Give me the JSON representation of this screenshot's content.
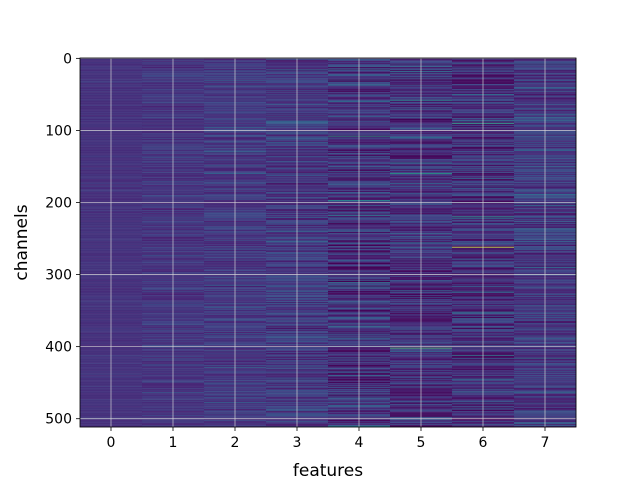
{
  "chart_data": {
    "type": "heatmap",
    "title": "",
    "xlabel": "features",
    "ylabel": "channels",
    "x_ticks": [
      0,
      1,
      2,
      3,
      4,
      5,
      6,
      7
    ],
    "y_ticks": [
      0,
      100,
      200,
      300,
      400,
      500
    ],
    "n_columns": 8,
    "n_rows": 512,
    "xlim": [
      -0.5,
      7.5
    ],
    "ylim": [
      511.5,
      -0.5
    ],
    "grid": true,
    "colormap": "viridis",
    "column_variability": [
      0.05,
      0.12,
      0.16,
      0.22,
      0.3,
      0.26,
      0.28,
      0.24
    ],
    "column_base": [
      0.14,
      0.15,
      0.16,
      0.16,
      0.14,
      0.13,
      0.13,
      0.16
    ],
    "highlights": [
      {
        "column": 6,
        "row": 262,
        "value": 0.95
      },
      {
        "column": 5,
        "row": 402,
        "value": 0.72
      },
      {
        "column": 6,
        "row": 90,
        "value": 0.62
      },
      {
        "column": 5,
        "row": 160,
        "value": 0.6
      },
      {
        "column": 6,
        "row": 220,
        "value": 0.55
      },
      {
        "column": 4,
        "row": 108,
        "value": 0.55
      },
      {
        "column": 5,
        "row": 58,
        "value": 0.52
      }
    ]
  }
}
